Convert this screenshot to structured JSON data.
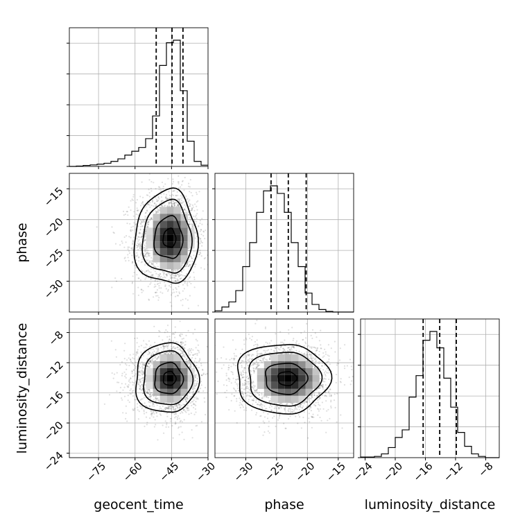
{
  "chart_data": {
    "type": "corner",
    "parameters": [
      "geocent_time",
      "phase",
      "luminosity_distance"
    ],
    "axis_labels": [
      "geocent_time",
      "phase",
      "luminosity_distance"
    ],
    "ranges": [
      [
        -87,
        -30
      ],
      [
        -35,
        -12.5
      ],
      [
        -24.6,
        -6.2
      ]
    ],
    "ticks": [
      [
        -75,
        -60,
        -45,
        -30
      ],
      [
        -30,
        -25,
        -20,
        -15
      ],
      [
        -24,
        -20,
        -16,
        -12,
        -8
      ]
    ],
    "tick_labels": [
      [
        "−75",
        "−60",
        "−45",
        "−30"
      ],
      [
        "−30",
        "−25",
        "−20",
        "−15"
      ],
      [
        "−24",
        "−20",
        "−16",
        "−12",
        "−8"
      ]
    ],
    "quantiles": [
      [
        -51.3,
        -44.8,
        -40.3
      ],
      [
        -25.9,
        -23.1,
        -20.2
      ],
      [
        -16.3,
        -14.1,
        -11.9
      ]
    ],
    "histograms": [
      {
        "parameter": "geocent_time",
        "bin_start": -87,
        "bin_width": 2.85,
        "counts": [
          0,
          0.003,
          0.008,
          0.012,
          0.018,
          0.025,
          0.04,
          0.06,
          0.09,
          0.12,
          0.15,
          0.22,
          0.4,
          0.8,
          0.98,
          1.0,
          0.6,
          0.2,
          0.04,
          0.01
        ]
      },
      {
        "parameter": "phase",
        "bin_start": -35,
        "bin_width": 1.125,
        "counts": [
          0.01,
          0.04,
          0.08,
          0.17,
          0.36,
          0.55,
          0.79,
          0.96,
          1.0,
          0.94,
          0.79,
          0.55,
          0.36,
          0.15,
          0.06,
          0.02,
          0.005,
          0,
          0,
          0
        ]
      },
      {
        "parameter": "luminosity_distance",
        "bin_start": -24.6,
        "bin_width": 0.92,
        "counts": [
          0.005,
          0.005,
          0.01,
          0.03,
          0.08,
          0.16,
          0.22,
          0.48,
          0.65,
          0.93,
          1.0,
          0.87,
          0.63,
          0.4,
          0.2,
          0.09,
          0.03,
          0.01,
          0,
          0
        ]
      }
    ],
    "samples_2d": [
      {
        "x": "geocent_time",
        "y": "phase",
        "cx": -45.5,
        "cy": -23.0,
        "sx": 6.5,
        "sy": 3.8,
        "contour_levels": [
          0.4,
          0.9,
          1.55,
          2.0
        ]
      },
      {
        "x": "geocent_time",
        "y": "luminosity_distance",
        "cx": -45.5,
        "cy": -14.1,
        "sx": 6.5,
        "sy": 2.3,
        "contour_levels": [
          0.4,
          0.9,
          1.55,
          2.0
        ]
      },
      {
        "x": "phase",
        "y": "luminosity_distance",
        "cx": -23.1,
        "cy": -14.1,
        "sx": 3.8,
        "sy": 2.3,
        "contour_levels": [
          0.4,
          0.9,
          1.55,
          2.0
        ]
      }
    ],
    "grid": true,
    "legend": "none"
  }
}
